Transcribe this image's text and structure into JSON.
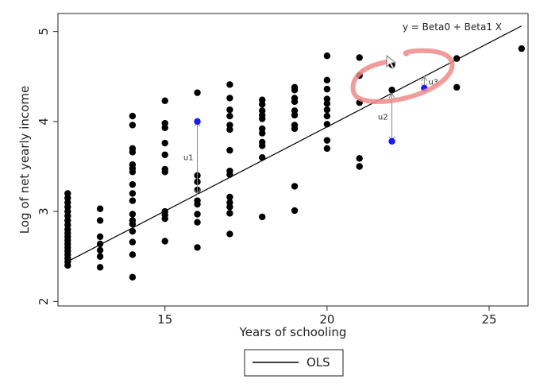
{
  "chart_data": {
    "type": "scatter",
    "xlabel": "Years of schooling",
    "ylabel": "Log of net yearly income",
    "xlim": [
      11.7,
      26.2
    ],
    "ylim": [
      1.95,
      5.2
    ],
    "x_ticks": [
      15,
      20,
      25
    ],
    "y_ticks": [
      2,
      3,
      4,
      5
    ],
    "grid": false,
    "legend": {
      "placement": "bottom-center",
      "entries": [
        "OLS"
      ]
    },
    "equation_label": "y = Beta0 + Beta1 X",
    "regression_line": {
      "intercept": 0.2,
      "slope": 0.187,
      "x_range": [
        12,
        26
      ]
    },
    "series": [
      {
        "name": "OLS",
        "points": [
          [
            12,
            3.2
          ],
          [
            12,
            3.15
          ],
          [
            12,
            3.1
          ],
          [
            12,
            3.05
          ],
          [
            12,
            3.0
          ],
          [
            12,
            2.95
          ],
          [
            12,
            2.9
          ],
          [
            12,
            2.85
          ],
          [
            12,
            2.8
          ],
          [
            12,
            2.76
          ],
          [
            12,
            2.72
          ],
          [
            12,
            2.68
          ],
          [
            12,
            2.64
          ],
          [
            12,
            2.6
          ],
          [
            12,
            2.56
          ],
          [
            12,
            2.52
          ],
          [
            12,
            2.48
          ],
          [
            12,
            2.44
          ],
          [
            12,
            2.4
          ],
          [
            13,
            3.03
          ],
          [
            13,
            2.9
          ],
          [
            13,
            2.72
          ],
          [
            13,
            2.64
          ],
          [
            13,
            2.57
          ],
          [
            13,
            2.5
          ],
          [
            13,
            2.38
          ],
          [
            14,
            4.06
          ],
          [
            14,
            3.96
          ],
          [
            14,
            3.7
          ],
          [
            14,
            3.66
          ],
          [
            14,
            3.52
          ],
          [
            14,
            3.48
          ],
          [
            14,
            3.44
          ],
          [
            14,
            3.3
          ],
          [
            14,
            3.2
          ],
          [
            14,
            3.12
          ],
          [
            14,
            2.97
          ],
          [
            14,
            2.9
          ],
          [
            14,
            2.86
          ],
          [
            14,
            2.78
          ],
          [
            14,
            2.66
          ],
          [
            14,
            2.52
          ],
          [
            14,
            2.27
          ],
          [
            15,
            4.23
          ],
          [
            15,
            3.98
          ],
          [
            15,
            3.93
          ],
          [
            15,
            3.76
          ],
          [
            15,
            3.63
          ],
          [
            15,
            3.47
          ],
          [
            15,
            3.44
          ],
          [
            15,
            3.0
          ],
          [
            15,
            2.96
          ],
          [
            15,
            2.92
          ],
          [
            15,
            2.67
          ],
          [
            16,
            4.32
          ],
          [
            16,
            3.4
          ],
          [
            16,
            3.33
          ],
          [
            16,
            3.24
          ],
          [
            16,
            3.12
          ],
          [
            16,
            3.08
          ],
          [
            16,
            2.97
          ],
          [
            16,
            2.88
          ],
          [
            16,
            2.6
          ],
          [
            17,
            4.41
          ],
          [
            17,
            4.26
          ],
          [
            17,
            4.13
          ],
          [
            17,
            4.06
          ],
          [
            17,
            3.96
          ],
          [
            17,
            3.91
          ],
          [
            17,
            3.68
          ],
          [
            17,
            3.45
          ],
          [
            17,
            3.41
          ],
          [
            17,
            3.16
          ],
          [
            17,
            3.1
          ],
          [
            17,
            3.05
          ],
          [
            17,
            2.98
          ],
          [
            17,
            2.75
          ],
          [
            18,
            4.24
          ],
          [
            18,
            4.19
          ],
          [
            18,
            4.12
          ],
          [
            18,
            4.07
          ],
          [
            18,
            4.03
          ],
          [
            18,
            3.92
          ],
          [
            18,
            3.87
          ],
          [
            18,
            3.77
          ],
          [
            18,
            3.73
          ],
          [
            18,
            3.6
          ],
          [
            18,
            2.94
          ],
          [
            19,
            4.38
          ],
          [
            19,
            4.35
          ],
          [
            19,
            4.26
          ],
          [
            19,
            4.22
          ],
          [
            19,
            4.12
          ],
          [
            19,
            4.07
          ],
          [
            19,
            3.96
          ],
          [
            19,
            3.92
          ],
          [
            19,
            3.28
          ],
          [
            19,
            3.01
          ],
          [
            20,
            4.73
          ],
          [
            20,
            4.46
          ],
          [
            20,
            4.36
          ],
          [
            20,
            4.25
          ],
          [
            20,
            4.2
          ],
          [
            20,
            4.13
          ],
          [
            20,
            4.06
          ],
          [
            20,
            3.97
          ],
          [
            20,
            3.79
          ],
          [
            20,
            3.7
          ],
          [
            21,
            4.71
          ],
          [
            21,
            4.51
          ],
          [
            21,
            4.21
          ],
          [
            21,
            3.59
          ],
          [
            21,
            3.5
          ],
          [
            22,
            4.63
          ],
          [
            22,
            4.35
          ],
          [
            24,
            4.7
          ],
          [
            24,
            4.38
          ],
          [
            26,
            4.81
          ]
        ]
      }
    ],
    "highlighted_points": [
      {
        "x": 16,
        "y": 4.0,
        "residual": "u1"
      },
      {
        "x": 22,
        "y": 3.78,
        "residual": "u2"
      },
      {
        "x": 23,
        "y": 4.37,
        "residual": "u3"
      }
    ]
  }
}
